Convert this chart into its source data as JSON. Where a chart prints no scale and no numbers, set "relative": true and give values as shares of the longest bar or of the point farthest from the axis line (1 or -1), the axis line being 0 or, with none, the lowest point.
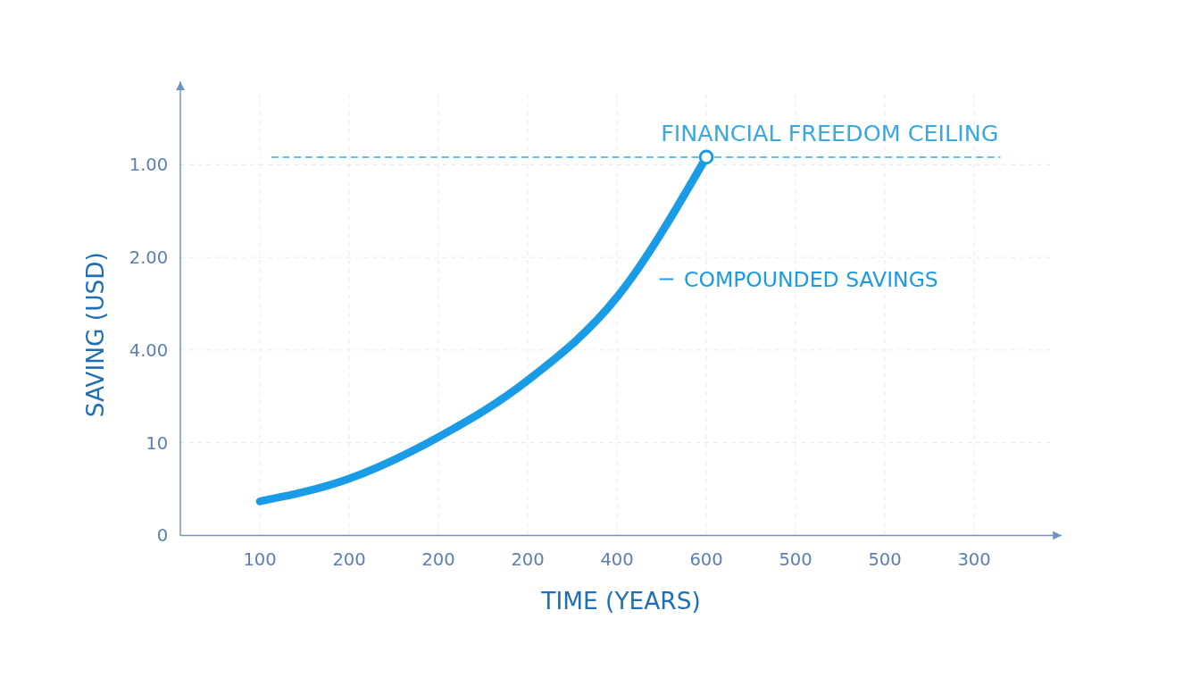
{
  "chart_data": {
    "type": "line",
    "xlabel": "TIME (YEARS)",
    "ylabel": "SAVING (USD)",
    "relative": true,
    "categories": [
      "100",
      "200",
      "200",
      "200",
      "400",
      "600",
      "500",
      "500",
      "300"
    ],
    "annotations": [
      "0",
      "10",
      "4.00",
      "2.00",
      "1.00"
    ],
    "grid": true,
    "legend": "right",
    "line_style": "solid",
    "series": [
      {
        "name": "COMPOUNDED SAVINGS",
        "color": "#1a9be6",
        "marker": "none",
        "values": [
          0.09,
          0.15,
          0.26,
          0.41,
          0.63,
          1,
          null,
          null,
          null
        ]
      },
      {
        "type": "scatter",
        "color": "#1a9be6",
        "marker": "circle",
        "x": [
          "600"
        ],
        "values": [
          1
        ]
      }
    ],
    "ref_lines": [
      {
        "axis": "y",
        "value": 1,
        "label": "FINANCIAL FREEDOM CEILING",
        "color": "#3aa8e0",
        "line_style": "dashed"
      }
    ]
  }
}
